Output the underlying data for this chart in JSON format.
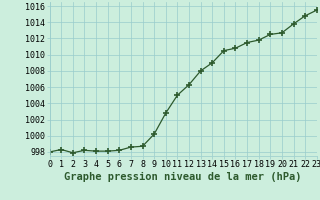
{
  "x": [
    0,
    1,
    2,
    3,
    4,
    5,
    6,
    7,
    8,
    9,
    10,
    11,
    12,
    13,
    14,
    15,
    16,
    17,
    18,
    19,
    20,
    21,
    22,
    23
  ],
  "y": [
    998.0,
    998.3,
    997.9,
    998.2,
    998.1,
    998.1,
    998.2,
    998.6,
    998.7,
    1000.2,
    1002.8,
    1005.0,
    1006.3,
    1008.0,
    1009.0,
    1010.5,
    1010.8,
    1011.5,
    1011.8,
    1012.5,
    1012.7,
    1013.8,
    1014.8,
    1015.5
  ],
  "line_color": "#2d5a2d",
  "marker": "+",
  "marker_color": "#2d5a2d",
  "background_color": "#cceedd",
  "grid_color": "#99cccc",
  "xlabel": "Graphe pression niveau de la mer (hPa)",
  "xlim": [
    0,
    23
  ],
  "ylim": [
    997.5,
    1016.5
  ],
  "yticks": [
    998,
    1000,
    1002,
    1004,
    1006,
    1008,
    1010,
    1012,
    1014,
    1016
  ],
  "xticks": [
    0,
    1,
    2,
    3,
    4,
    5,
    6,
    7,
    8,
    9,
    10,
    11,
    12,
    13,
    14,
    15,
    16,
    17,
    18,
    19,
    20,
    21,
    22,
    23
  ],
  "xlabel_fontsize": 7.5,
  "tick_fontsize": 6.0
}
